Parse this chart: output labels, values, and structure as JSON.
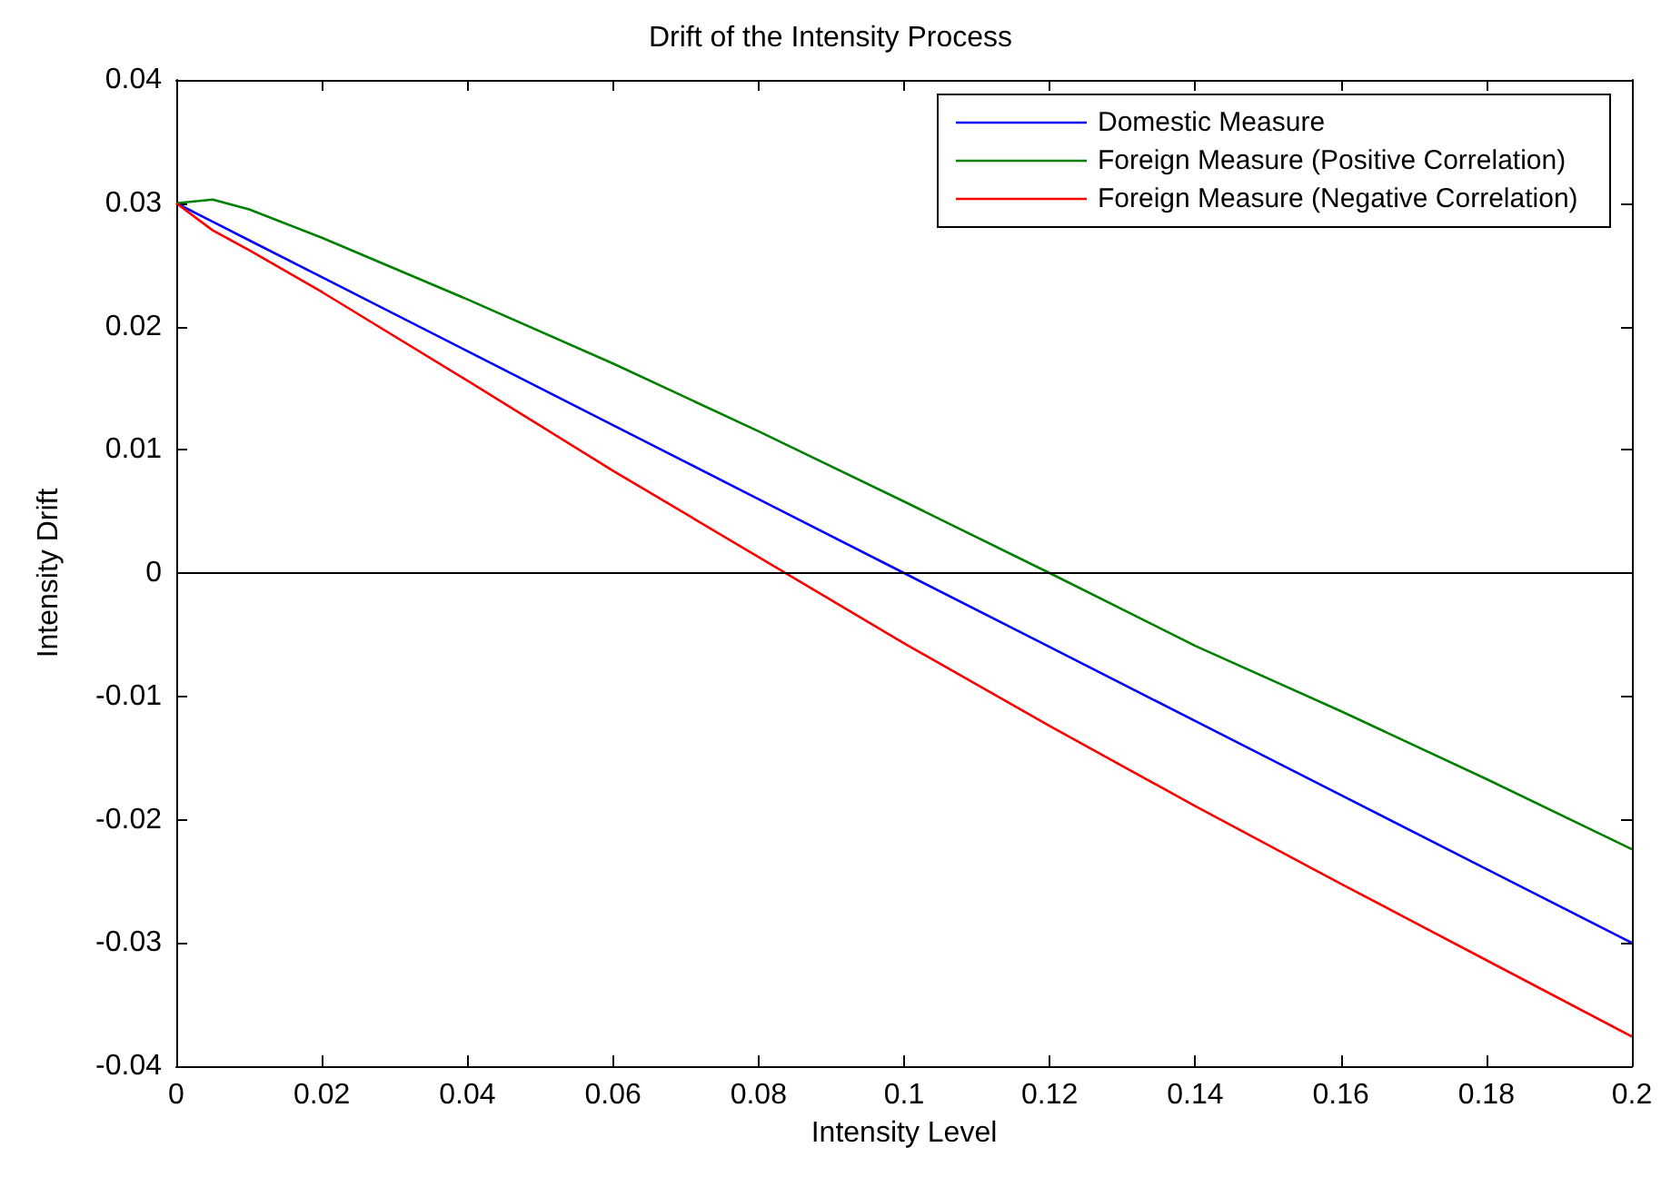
{
  "chart_data": {
    "type": "line",
    "title": "Drift of the Intensity Process",
    "xlabel": "Intensity Level",
    "ylabel": "Intensity Drift",
    "x": [
      0,
      0.005,
      0.01,
      0.02,
      0.04,
      0.06,
      0.08,
      0.1,
      0.12,
      0.14,
      0.16,
      0.18,
      0.2
    ],
    "series": [
      {
        "name": "Domestic Measure",
        "color": "#0000ff",
        "values": [
          0.03,
          0.0285,
          0.027,
          0.024,
          0.018,
          0.012,
          0.006,
          0,
          -0.006,
          -0.012,
          -0.018,
          -0.024,
          -0.03
        ]
      },
      {
        "name": "Foreign Measure (Positive Correlation)",
        "color": "#008000",
        "values": [
          0.03,
          0.0303,
          0.0295,
          0.0272,
          0.0222,
          0.017,
          0.0115,
          0.0058,
          0,
          -0.0059,
          -0.0112,
          -0.0167,
          -0.0224
        ]
      },
      {
        "name": "Foreign Measure (Negative Correlation)",
        "color": "#ff0000",
        "values": [
          0.03,
          0.0278,
          0.0262,
          0.0228,
          0.0156,
          0.0083,
          0.0013,
          -0.0057,
          -0.0124,
          -0.0189,
          -0.0252,
          -0.0314,
          -0.0376
        ]
      }
    ],
    "xlim": [
      0,
      0.2
    ],
    "xticks": [
      0,
      0.02,
      0.04,
      0.06,
      0.08,
      0.1,
      0.12,
      0.14,
      0.16,
      0.18,
      0.2
    ],
    "ylim": [
      -0.04,
      0.04
    ],
    "yticks": [
      -0.04,
      -0.03,
      -0.02,
      -0.01,
      0,
      0.01,
      0.02,
      0.03,
      0.04
    ],
    "ref_lines": [
      {
        "axis": "y",
        "value": 0,
        "color": "#000000"
      }
    ],
    "legend": "top right",
    "grid": false,
    "marker": "none",
    "line_style": "solid"
  }
}
